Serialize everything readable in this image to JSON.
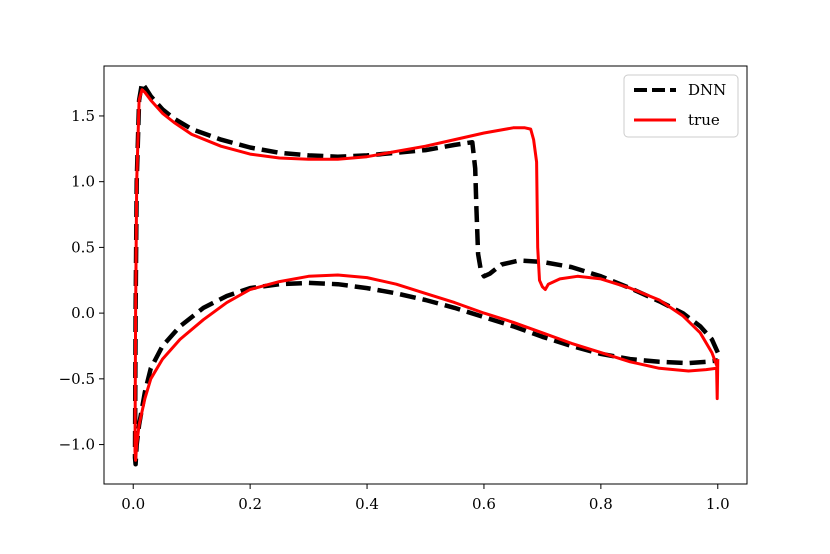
{
  "chart_data": {
    "type": "line",
    "title": "",
    "xlabel": "",
    "ylabel": "",
    "xlim": [
      -0.05,
      1.05
    ],
    "ylim": [
      -1.3,
      1.88
    ],
    "x_ticks": [
      0.0,
      0.2,
      0.4,
      0.6,
      0.8,
      1.0
    ],
    "x_tick_labels": [
      "0.0",
      "0.2",
      "0.4",
      "0.6",
      "0.8",
      "1.0"
    ],
    "y_ticks": [
      -1.0,
      -0.5,
      0.0,
      0.5,
      1.0,
      1.5
    ],
    "y_tick_labels": [
      "−1.0",
      "−0.5",
      "0.0",
      "0.5",
      "1.0",
      "1.5"
    ],
    "grid": false,
    "legend": {
      "placement": "top-right"
    },
    "series": [
      {
        "name": "DNN",
        "color": "#000000",
        "style": "dashed",
        "x": [
          1.0,
          0.99,
          0.97,
          0.94,
          0.9,
          0.85,
          0.8,
          0.75,
          0.7,
          0.66,
          0.63,
          0.61,
          0.6,
          0.595,
          0.59,
          0.587,
          0.585,
          0.58,
          0.55,
          0.5,
          0.45,
          0.4,
          0.35,
          0.3,
          0.25,
          0.2,
          0.15,
          0.1,
          0.07,
          0.05,
          0.03,
          0.02,
          0.015,
          0.01,
          0.006,
          0.004,
          0.003,
          0.004,
          0.006,
          0.01,
          0.02,
          0.03,
          0.05,
          0.08,
          0.12,
          0.16,
          0.2,
          0.25,
          0.3,
          0.35,
          0.4,
          0.45,
          0.5,
          0.55,
          0.6,
          0.65,
          0.7,
          0.75,
          0.8,
          0.85,
          0.9,
          0.95,
          0.98,
          1.0
        ],
        "y": [
          -0.3,
          -0.2,
          -0.1,
          0.0,
          0.09,
          0.19,
          0.28,
          0.35,
          0.39,
          0.4,
          0.37,
          0.3,
          0.28,
          0.32,
          0.45,
          0.8,
          1.1,
          1.3,
          1.28,
          1.24,
          1.22,
          1.2,
          1.19,
          1.2,
          1.22,
          1.26,
          1.32,
          1.4,
          1.48,
          1.55,
          1.65,
          1.72,
          1.75,
          1.62,
          1.0,
          0.0,
          -1.1,
          -1.15,
          -1.0,
          -0.85,
          -0.6,
          -0.42,
          -0.25,
          -0.1,
          0.04,
          0.13,
          0.19,
          0.22,
          0.23,
          0.22,
          0.19,
          0.15,
          0.1,
          0.04,
          -0.03,
          -0.1,
          -0.18,
          -0.25,
          -0.31,
          -0.35,
          -0.37,
          -0.38,
          -0.37,
          -0.36
        ]
      },
      {
        "name": "true",
        "color": "#ff0000",
        "style": "solid",
        "x": [
          1.0,
          0.99,
          0.97,
          0.94,
          0.9,
          0.85,
          0.8,
          0.76,
          0.73,
          0.71,
          0.705,
          0.7,
          0.695,
          0.692,
          0.69,
          0.685,
          0.68,
          0.67,
          0.65,
          0.6,
          0.55,
          0.5,
          0.45,
          0.4,
          0.35,
          0.3,
          0.25,
          0.2,
          0.15,
          0.1,
          0.07,
          0.05,
          0.03,
          0.02,
          0.015,
          0.01,
          0.006,
          0.004,
          0.003,
          0.004,
          0.006,
          0.01,
          0.02,
          0.03,
          0.05,
          0.08,
          0.12,
          0.16,
          0.2,
          0.25,
          0.3,
          0.35,
          0.4,
          0.45,
          0.5,
          0.55,
          0.6,
          0.65,
          0.7,
          0.75,
          0.8,
          0.85,
          0.9,
          0.95,
          0.98,
          0.998,
          0.999,
          1.0
        ],
        "y": [
          -0.42,
          -0.3,
          -0.15,
          -0.02,
          0.1,
          0.19,
          0.26,
          0.28,
          0.26,
          0.22,
          0.18,
          0.2,
          0.25,
          0.5,
          1.15,
          1.32,
          1.4,
          1.41,
          1.41,
          1.37,
          1.32,
          1.27,
          1.23,
          1.19,
          1.17,
          1.17,
          1.18,
          1.21,
          1.27,
          1.36,
          1.45,
          1.52,
          1.62,
          1.68,
          1.7,
          1.62,
          1.0,
          0.0,
          -1.05,
          -1.12,
          -1.0,
          -0.85,
          -0.65,
          -0.5,
          -0.35,
          -0.2,
          -0.05,
          0.08,
          0.18,
          0.24,
          0.28,
          0.29,
          0.27,
          0.22,
          0.15,
          0.08,
          0.0,
          -0.07,
          -0.15,
          -0.23,
          -0.3,
          -0.37,
          -0.42,
          -0.44,
          -0.43,
          -0.42,
          -0.65,
          -0.35
        ]
      }
    ]
  }
}
